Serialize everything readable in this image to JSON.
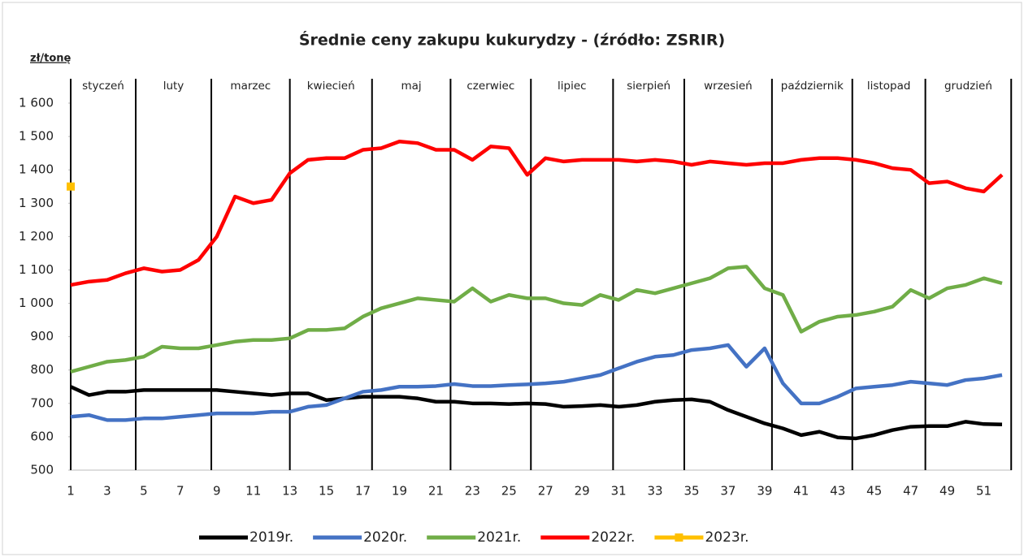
{
  "chart_data": {
    "type": "line",
    "title": "Średnie ceny zakupu kukurydzy - (źródło: ZSRIR)",
    "y_label": "zł/tonę",
    "x": [
      1,
      2,
      3,
      4,
      5,
      6,
      7,
      8,
      9,
      10,
      11,
      12,
      13,
      14,
      15,
      16,
      17,
      18,
      19,
      20,
      21,
      22,
      23,
      24,
      25,
      26,
      27,
      28,
      29,
      30,
      31,
      32,
      33,
      34,
      35,
      36,
      37,
      38,
      39,
      40,
      41,
      42,
      43,
      44,
      45,
      46,
      47,
      48,
      49,
      50,
      51,
      52
    ],
    "xlim": [
      1,
      52
    ],
    "xticks": [
      1,
      3,
      5,
      7,
      9,
      11,
      13,
      15,
      17,
      19,
      21,
      23,
      25,
      27,
      29,
      31,
      33,
      35,
      37,
      39,
      41,
      43,
      45,
      47,
      49,
      51
    ],
    "ylim": [
      500,
      1600
    ],
    "yticks": [
      500,
      600,
      700,
      800,
      900,
      {
        "value": 1000,
        "label": "1 000"
      },
      {
        "value": 1100,
        "label": "1 100"
      },
      {
        "value": 1200,
        "label": "1 200"
      },
      {
        "value": 1300,
        "label": "1 300"
      },
      {
        "value": 1400,
        "label": "1 400"
      },
      {
        "value": 1500,
        "label": "1 500"
      },
      {
        "value": 1600,
        "label": "1 600"
      }
    ],
    "month_labels": [
      "styczeń",
      "luty",
      "marzec",
      "kwiecień",
      "maj",
      "czerwiec",
      "lipiec",
      "sierpień",
      "wrzesień",
      "październik",
      "listopad",
      "grudzień"
    ],
    "month_lines": [
      1,
      4.56,
      8.7,
      13.0,
      17.5,
      21.8,
      26.2,
      30.7,
      34.6,
      39.4,
      43.8,
      47.8,
      52.5
    ],
    "legend": "bottom",
    "series": [
      {
        "name": "2019r.",
        "color": "#000000",
        "values": [
          750,
          725,
          735,
          735,
          740,
          740,
          740,
          740,
          740,
          735,
          730,
          725,
          730,
          730,
          710,
          715,
          720,
          720,
          720,
          715,
          705,
          705,
          700,
          700,
          698,
          700,
          698,
          690,
          692,
          695,
          690,
          695,
          705,
          710,
          712,
          705,
          680,
          660,
          640,
          625,
          605,
          615,
          598,
          595,
          605,
          620,
          630,
          632,
          632,
          645,
          638,
          637
        ]
      },
      {
        "name": "2020r.",
        "color": "#4472c4",
        "values": [
          660,
          665,
          650,
          650,
          655,
          655,
          660,
          665,
          670,
          670,
          670,
          675,
          675,
          690,
          695,
          715,
          735,
          740,
          750,
          750,
          752,
          758,
          752,
          752,
          755,
          757,
          760,
          765,
          775,
          785,
          805,
          825,
          840,
          845,
          860,
          865,
          875,
          810,
          865,
          760,
          700,
          700,
          720,
          745,
          750,
          755,
          765,
          760,
          755,
          770,
          775,
          785
        ]
      },
      {
        "name": "2021r.",
        "color": "#70ad47",
        "values": [
          795,
          810,
          825,
          830,
          840,
          870,
          865,
          865,
          875,
          885,
          890,
          890,
          895,
          920,
          920,
          925,
          960,
          985,
          1000,
          1015,
          1010,
          1005,
          1045,
          1005,
          1025,
          1015,
          1015,
          1000,
          995,
          1025,
          1010,
          1040,
          1030,
          1045,
          1060,
          1075,
          1105,
          1110,
          1045,
          1025,
          915,
          945,
          960,
          965,
          975,
          990,
          1040,
          1015,
          1045,
          1055,
          1075,
          1060
        ]
      },
      {
        "name": "2022r.",
        "color": "#ff0000",
        "values": [
          1055,
          1065,
          1070,
          1090,
          1105,
          1095,
          1100,
          1130,
          1200,
          1320,
          1300,
          1310,
          1390,
          1430,
          1435,
          1435,
          1460,
          1465,
          1485,
          1480,
          1460,
          1460,
          1430,
          1470,
          1465,
          1385,
          1435,
          1425,
          1430,
          1430,
          1430,
          1425,
          1430,
          1425,
          1415,
          1425,
          1420,
          1415,
          1420,
          1420,
          1430,
          1435,
          1435,
          1430,
          1420,
          1405,
          1400,
          1360,
          1365,
          1345,
          1335,
          1385
        ]
      },
      {
        "name": "2023r.",
        "color": "#ffc000",
        "marker": true,
        "values": [
          1350,
          null,
          null,
          null,
          null,
          null,
          null,
          null,
          null,
          null,
          null,
          null,
          null,
          null,
          null,
          null,
          null,
          null,
          null,
          null,
          null,
          null,
          null,
          null,
          null,
          null,
          null,
          null,
          null,
          null,
          null,
          null,
          null,
          null,
          null,
          null,
          null,
          null,
          null,
          null,
          null,
          null,
          null,
          null,
          null,
          null,
          null,
          null,
          null,
          null,
          null,
          null
        ]
      }
    ]
  }
}
